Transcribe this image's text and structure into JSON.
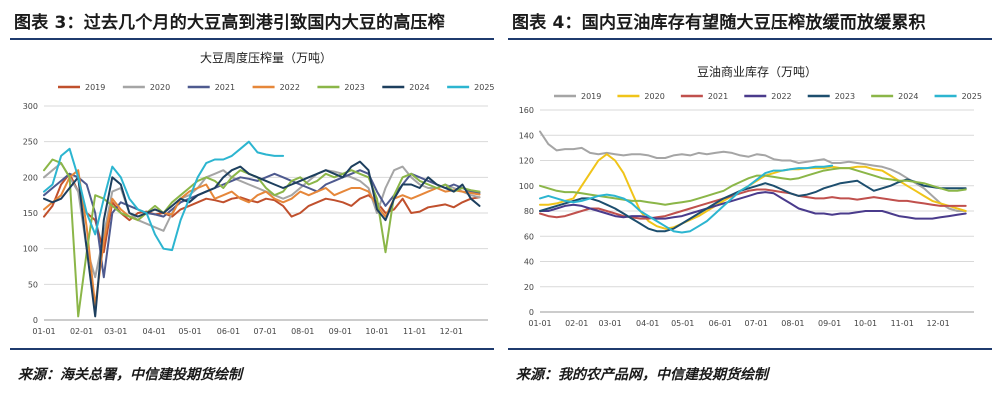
{
  "left": {
    "figure_title": "图表 3：过去几个月的大豆高到港引致国内大豆的高压榨",
    "source": "来源：海关总署，中信建投期货绘制",
    "chart_data": {
      "type": "line",
      "title": "大豆周度压榨量（万吨）",
      "ylim": [
        0,
        300
      ],
      "y_ticks": [
        0,
        50,
        100,
        150,
        200,
        250,
        300
      ],
      "x_range": [
        0,
        52
      ],
      "x_ticks": [
        {
          "label": "01-01",
          "x": 0
        },
        {
          "label": "02-01",
          "x": 4.4
        },
        {
          "label": "03-01",
          "x": 8.4
        },
        {
          "label": "04-01",
          "x": 12.9
        },
        {
          "label": "05-01",
          "x": 17.1
        },
        {
          "label": "06-01",
          "x": 21.6
        },
        {
          "label": "07-01",
          "x": 25.9
        },
        {
          "label": "08-01",
          "x": 30.3
        },
        {
          "label": "09-01",
          "x": 34.7
        },
        {
          "label": "10-01",
          "x": 39
        },
        {
          "label": "11-01",
          "x": 43.4
        },
        {
          "label": "12-01",
          "x": 47.7
        }
      ],
      "grid": "horizontal",
      "legend_position": "top",
      "series": [
        {
          "name": "2019",
          "color": "#c0502d",
          "values": [
            145,
            160,
            190,
            205,
            180,
            150,
            140,
            95,
            165,
            150,
            140,
            150,
            152,
            148,
            150,
            145,
            155,
            160,
            165,
            170,
            168,
            165,
            170,
            172,
            168,
            165,
            170,
            168,
            160,
            145,
            150,
            160,
            165,
            170,
            168,
            165,
            160,
            170,
            175,
            165,
            150,
            155,
            170,
            150,
            152,
            158,
            160,
            162,
            158,
            165,
            170,
            172
          ]
        },
        {
          "name": "2020",
          "color": "#a5a5a5",
          "values": [
            200,
            210,
            220,
            200,
            180,
            100,
            60,
            120,
            180,
            185,
            150,
            140,
            135,
            130,
            125,
            150,
            170,
            175,
            185,
            200,
            205,
            210,
            200,
            195,
            190,
            185,
            180,
            175,
            170,
            175,
            185,
            195,
            205,
            210,
            208,
            205,
            200,
            195,
            185,
            150,
            185,
            210,
            215,
            200,
            190,
            185,
            185,
            190,
            185,
            180,
            175,
            172
          ]
        },
        {
          "name": "2021",
          "color": "#4e5a8f",
          "values": [
            175,
            185,
            195,
            205,
            200,
            190,
            150,
            60,
            150,
            165,
            160,
            155,
            150,
            148,
            145,
            155,
            165,
            170,
            175,
            180,
            185,
            190,
            195,
            200,
            198,
            195,
            200,
            205,
            200,
            195,
            190,
            185,
            180,
            190,
            195,
            200,
            205,
            210,
            205,
            180,
            160,
            175,
            190,
            205,
            200,
            195,
            190,
            185,
            190,
            185,
            180,
            178
          ]
        },
        {
          "name": "2022",
          "color": "#e6873a",
          "values": [
            155,
            165,
            175,
            200,
            210,
            130,
            20,
            110,
            170,
            155,
            145,
            140,
            150,
            155,
            150,
            148,
            170,
            180,
            185,
            190,
            170,
            175,
            180,
            170,
            165,
            175,
            180,
            170,
            165,
            170,
            180,
            175,
            180,
            185,
            175,
            180,
            185,
            185,
            180,
            160,
            145,
            170,
            175,
            170,
            175,
            180,
            185,
            180,
            182,
            180,
            178,
            176
          ]
        },
        {
          "name": "2023",
          "color": "#8bb648",
          "values": [
            210,
            225,
            220,
            200,
            5,
            95,
            175,
            170,
            160,
            150,
            145,
            140,
            150,
            160,
            150,
            165,
            175,
            185,
            195,
            200,
            195,
            185,
            200,
            210,
            205,
            200,
            185,
            175,
            180,
            195,
            200,
            190,
            195,
            205,
            200,
            205,
            210,
            205,
            200,
            170,
            95,
            175,
            200,
            205,
            195,
            190,
            185,
            190,
            180,
            185,
            182,
            180
          ]
        },
        {
          "name": "2024",
          "color": "#1d3f5e",
          "values": [
            170,
            165,
            170,
            185,
            200,
            100,
            5,
            140,
            200,
            190,
            150,
            145,
            150,
            155,
            150,
            160,
            170,
            165,
            175,
            180,
            185,
            200,
            210,
            215,
            205,
            200,
            195,
            190,
            185,
            190,
            195,
            200,
            205,
            210,
            205,
            200,
            215,
            222,
            210,
            155,
            140,
            170,
            190,
            190,
            185,
            200,
            190,
            185,
            180,
            190,
            170,
            160
          ]
        },
        {
          "name": "2025",
          "color": "#2cb5d0",
          "values": [
            180,
            190,
            230,
            240,
            200,
            150,
            120,
            170,
            215,
            200,
            170,
            155,
            150,
            120,
            100,
            98,
            140,
            170,
            200,
            220,
            225,
            225,
            230,
            240,
            250,
            235,
            232,
            230,
            230
          ]
        }
      ]
    }
  },
  "right": {
    "figure_title": "图表 4：国内豆油库存有望随大豆压榨放缓而放缓累积",
    "source": "来源：我的农产品网，中信建投期货绘制",
    "chart_data": {
      "type": "line",
      "title": "豆油商业库存（万吨）",
      "ylim": [
        0,
        160
      ],
      "y_ticks": [
        0,
        20,
        40,
        60,
        80,
        100,
        120,
        140,
        160
      ],
      "x_range": [
        0,
        52
      ],
      "x_ticks": [
        {
          "label": "01-01",
          "x": 0
        },
        {
          "label": "02-01",
          "x": 4.4
        },
        {
          "label": "03-01",
          "x": 8.4
        },
        {
          "label": "04-01",
          "x": 12.9
        },
        {
          "label": "05-01",
          "x": 17.1
        },
        {
          "label": "06-01",
          "x": 21.6
        },
        {
          "label": "07-01",
          "x": 25.9
        },
        {
          "label": "08-01",
          "x": 30.3
        },
        {
          "label": "09-01",
          "x": 34.7
        },
        {
          "label": "10-01",
          "x": 39
        },
        {
          "label": "11-01",
          "x": 43.4
        },
        {
          "label": "12-01",
          "x": 47.7
        }
      ],
      "grid": "horizontal",
      "legend_position": "top",
      "series": [
        {
          "name": "2019",
          "color": "#a5a5a5",
          "values": [
            143,
            133,
            128,
            129,
            129,
            130,
            126,
            125,
            126,
            125,
            124,
            125,
            125,
            124,
            122,
            122,
            124,
            125,
            124,
            126,
            125,
            126,
            127,
            126,
            124,
            123,
            125,
            124,
            121,
            120,
            120,
            118,
            119,
            120,
            121,
            118,
            118,
            119,
            118,
            117,
            116,
            115,
            113,
            110,
            106,
            102,
            98,
            92,
            86,
            82,
            80,
            80
          ]
        },
        {
          "name": "2020",
          "color": "#f0c419",
          "values": [
            85,
            85,
            86,
            88,
            90,
            100,
            110,
            120,
            125,
            120,
            110,
            95,
            80,
            72,
            68,
            66,
            67,
            70,
            73,
            76,
            80,
            84,
            88,
            92,
            96,
            100,
            104,
            108,
            110,
            112,
            113,
            113,
            114,
            114,
            114,
            115,
            114,
            114,
            115,
            115,
            113,
            112,
            108,
            104,
            100,
            96,
            92,
            88,
            86,
            84,
            82,
            80
          ]
        },
        {
          "name": "2021",
          "color": "#c0504d",
          "values": [
            78,
            76,
            75,
            76,
            78,
            80,
            82,
            82,
            80,
            78,
            76,
            75,
            74,
            74,
            75,
            76,
            78,
            80,
            82,
            84,
            86,
            88,
            90,
            92,
            94,
            96,
            97,
            97,
            96,
            95,
            94,
            92,
            91,
            90,
            90,
            91,
            90,
            90,
            89,
            90,
            91,
            90,
            89,
            88,
            88,
            87,
            86,
            85,
            84,
            84,
            84,
            84
          ]
        },
        {
          "name": "2022",
          "color": "#4a3b8c",
          "values": [
            80,
            80,
            82,
            84,
            85,
            84,
            82,
            80,
            78,
            76,
            75,
            76,
            76,
            75,
            74,
            74,
            75,
            76,
            78,
            80,
            82,
            84,
            86,
            88,
            90,
            92,
            94,
            95,
            94,
            90,
            86,
            82,
            80,
            78,
            78,
            77,
            78,
            78,
            79,
            80,
            80,
            80,
            78,
            76,
            75,
            74,
            74,
            74,
            75,
            76,
            77,
            78
          ]
        },
        {
          "name": "2023",
          "color": "#1d4e6e",
          "values": [
            80,
            82,
            84,
            86,
            88,
            90,
            90,
            88,
            85,
            82,
            78,
            74,
            70,
            66,
            64,
            64,
            66,
            70,
            74,
            78,
            82,
            86,
            90,
            93,
            96,
            98,
            100,
            102,
            100,
            97,
            94,
            92,
            93,
            95,
            98,
            100,
            102,
            103,
            104,
            100,
            96,
            98,
            100,
            103,
            105,
            103,
            100,
            99,
            98,
            98,
            98,
            98
          ]
        },
        {
          "name": "2024",
          "color": "#8bb648",
          "values": [
            100,
            98,
            96,
            95,
            95,
            94,
            93,
            92,
            91,
            90,
            89,
            88,
            88,
            87,
            86,
            85,
            86,
            87,
            88,
            90,
            92,
            94,
            96,
            100,
            103,
            106,
            108,
            108,
            107,
            106,
            105,
            106,
            108,
            110,
            112,
            113,
            114,
            114,
            112,
            110,
            108,
            106,
            105,
            104,
            104,
            103,
            102,
            100,
            98,
            96,
            96,
            97
          ]
        },
        {
          "name": "2025",
          "color": "#2cb5d0",
          "values": [
            90,
            92,
            90,
            88,
            87,
            88,
            90,
            92,
            93,
            92,
            90,
            86,
            80,
            76,
            72,
            68,
            64,
            63,
            64,
            68,
            72,
            78,
            84,
            90,
            96,
            100,
            105,
            110,
            112,
            112,
            113,
            114,
            114,
            115,
            115,
            116
          ]
        }
      ]
    }
  }
}
